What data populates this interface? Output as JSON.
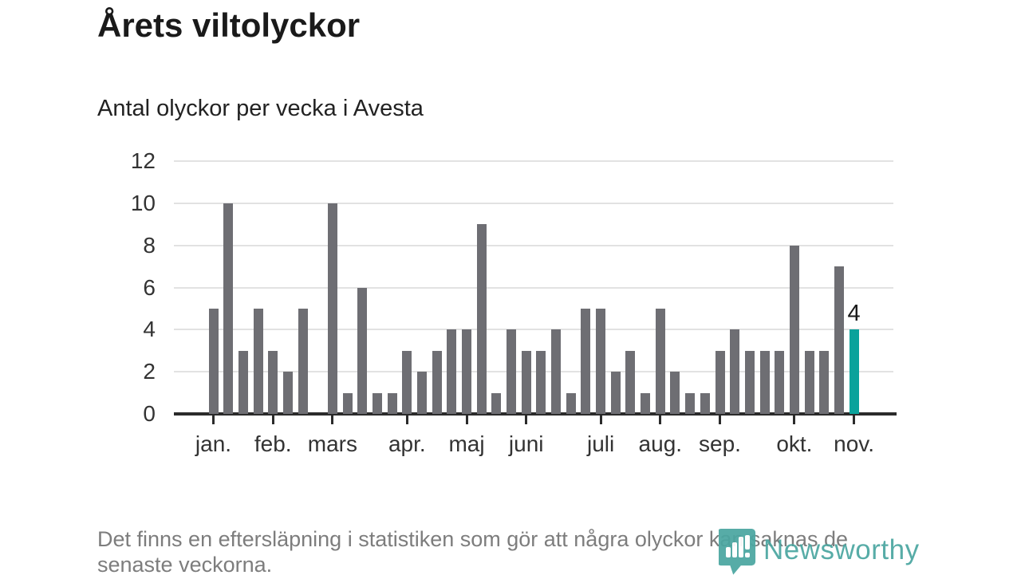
{
  "header": {
    "title": "Årets viltolyckor",
    "subtitle": "Antal olyckor per vecka i Avesta"
  },
  "chart_data": {
    "type": "bar",
    "title": "Antal olyckor per vecka i Avesta",
    "xlabel": "",
    "ylabel": "",
    "ylim": [
      0,
      12
    ],
    "y_ticks": [
      0,
      2,
      4,
      6,
      8,
      10,
      12
    ],
    "grid": true,
    "values": [
      5,
      10,
      3,
      5,
      3,
      2,
      5,
      0,
      10,
      1,
      6,
      1,
      1,
      3,
      2,
      3,
      4,
      4,
      9,
      1,
      4,
      3,
      3,
      4,
      1,
      5,
      5,
      2,
      3,
      1,
      5,
      2,
      1,
      1,
      3,
      4,
      3,
      3,
      3,
      8,
      3,
      3,
      7,
      4
    ],
    "highlight_index": 43,
    "highlight_label": "4",
    "month_ticks": [
      {
        "label": "jan.",
        "index": 0
      },
      {
        "label": "feb.",
        "index": 4
      },
      {
        "label": "mars",
        "index": 8
      },
      {
        "label": "apr.",
        "index": 13
      },
      {
        "label": "maj",
        "index": 17
      },
      {
        "label": "juni",
        "index": 21
      },
      {
        "label": "juli",
        "index": 26
      },
      {
        "label": "aug.",
        "index": 30
      },
      {
        "label": "sep.",
        "index": 34
      },
      {
        "label": "okt.",
        "index": 39
      },
      {
        "label": "nov.",
        "index": 43
      }
    ],
    "colors": {
      "bar": "#6e6e73",
      "highlight": "#0aa29b",
      "grid": "#e2e2e2",
      "axis": "#2b2b2b"
    }
  },
  "footer": {
    "note": "Det finns en eftersläpning i statistiken som gör att några olyckor kan saknas de senaste veckorna.",
    "brand": "Newsworthy",
    "brand_color": "#4ba6a1"
  }
}
